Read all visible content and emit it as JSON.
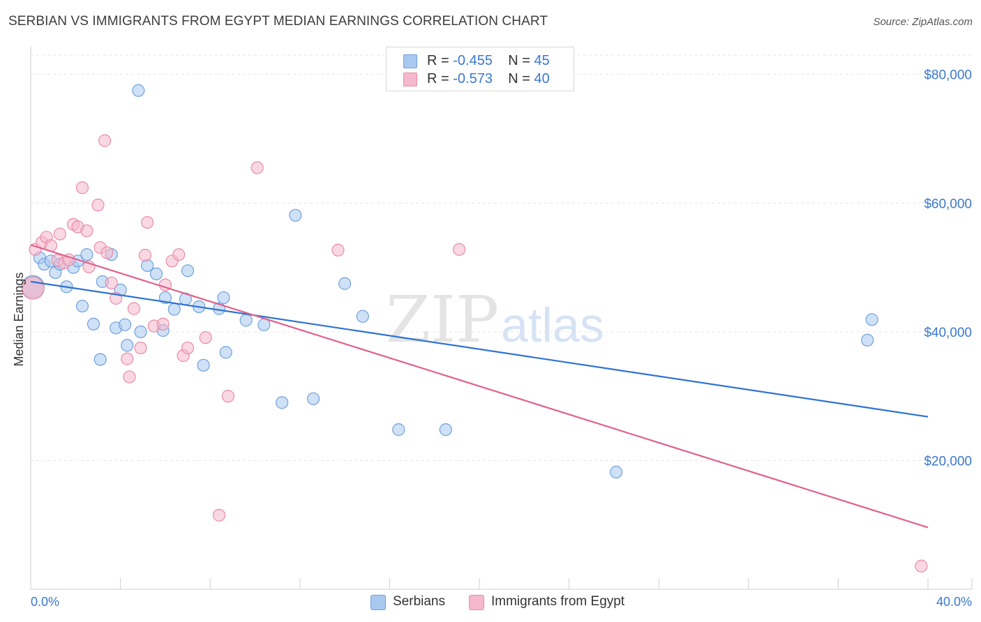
{
  "header": {
    "title": "SERBIAN VS IMMIGRANTS FROM EGYPT MEDIAN EARNINGS CORRELATION CHART",
    "source": "Source: ZipAtlas.com"
  },
  "legend": {
    "rows": [
      {
        "r_label": "R =",
        "r_value": "-0.455",
        "n_label": "N =",
        "n_value": "45",
        "color": "#a8c8f0"
      },
      {
        "r_label": "R =",
        "r_value": "-0.573",
        "n_label": "N =",
        "n_value": "40",
        "color": "#f5b8cc"
      }
    ]
  },
  "bottom_legend": {
    "items": [
      {
        "label": "Serbians",
        "color": "#a8c8f0"
      },
      {
        "label": "Immigrants from Egypt",
        "color": "#f5b8cc"
      }
    ]
  },
  "watermark": {
    "zip": "ZIP",
    "atlas": "atlas"
  },
  "chart_data": {
    "type": "scatter",
    "title": "SERBIAN VS IMMIGRANTS FROM EGYPT MEDIAN EARNINGS CORRELATION CHART",
    "xlabel": "",
    "ylabel": "Median Earnings",
    "xlim": [
      0,
      40
    ],
    "ylim": [
      0,
      83000
    ],
    "x_tick_labels": [
      "0.0%",
      "40.0%"
    ],
    "y_ticks": [
      20000,
      40000,
      60000,
      80000
    ],
    "y_tick_labels": [
      "$20,000",
      "$40,000",
      "$60,000",
      "$80,000"
    ],
    "grid": true,
    "legend_position": "top-center",
    "series": [
      {
        "name": "Serbians",
        "color": "#a8c8f0",
        "stroke": "#6fa0dc",
        "trend_color": "#2e72d2",
        "trend": {
          "x": [
            0,
            40
          ],
          "y": [
            47800,
            26800
          ]
        },
        "points": [
          {
            "x": 0.1,
            "y": 47000
          },
          {
            "x": 0.4,
            "y": 51500
          },
          {
            "x": 0.6,
            "y": 50500
          },
          {
            "x": 0.9,
            "y": 51000
          },
          {
            "x": 1.1,
            "y": 49200
          },
          {
            "x": 1.3,
            "y": 50500
          },
          {
            "x": 1.6,
            "y": 47000
          },
          {
            "x": 1.9,
            "y": 50000
          },
          {
            "x": 2.1,
            "y": 51000
          },
          {
            "x": 2.3,
            "y": 44000
          },
          {
            "x": 2.5,
            "y": 52000
          },
          {
            "x": 2.8,
            "y": 41200
          },
          {
            "x": 3.1,
            "y": 35700
          },
          {
            "x": 3.2,
            "y": 47800
          },
          {
            "x": 3.6,
            "y": 52000
          },
          {
            "x": 3.8,
            "y": 40600
          },
          {
            "x": 4.0,
            "y": 46500
          },
          {
            "x": 4.2,
            "y": 41100
          },
          {
            "x": 4.3,
            "y": 37900
          },
          {
            "x": 4.8,
            "y": 77500
          },
          {
            "x": 4.9,
            "y": 40000
          },
          {
            "x": 5.2,
            "y": 50300
          },
          {
            "x": 5.6,
            "y": 49000
          },
          {
            "x": 5.9,
            "y": 40200
          },
          {
            "x": 6.0,
            "y": 45300
          },
          {
            "x": 6.4,
            "y": 43500
          },
          {
            "x": 6.9,
            "y": 45100
          },
          {
            "x": 7.0,
            "y": 49500
          },
          {
            "x": 7.5,
            "y": 43900
          },
          {
            "x": 7.7,
            "y": 34800
          },
          {
            "x": 8.4,
            "y": 43600
          },
          {
            "x": 8.6,
            "y": 45300
          },
          {
            "x": 8.7,
            "y": 36800
          },
          {
            "x": 9.6,
            "y": 41800
          },
          {
            "x": 10.4,
            "y": 41100
          },
          {
            "x": 11.2,
            "y": 29000
          },
          {
            "x": 11.8,
            "y": 58100
          },
          {
            "x": 12.6,
            "y": 29600
          },
          {
            "x": 14.0,
            "y": 47500
          },
          {
            "x": 14.8,
            "y": 42400
          },
          {
            "x": 16.4,
            "y": 24800
          },
          {
            "x": 18.5,
            "y": 24800
          },
          {
            "x": 26.1,
            "y": 18200
          },
          {
            "x": 37.3,
            "y": 38700
          },
          {
            "x": 37.5,
            "y": 41900
          }
        ]
      },
      {
        "name": "Immigrants from Egypt",
        "color": "#f5b8cc",
        "stroke": "#e88ca8",
        "trend_color": "#e0608c",
        "trend": {
          "x": [
            0,
            40
          ],
          "y": [
            53500,
            9600
          ]
        },
        "points": [
          {
            "x": 0.2,
            "y": 52800
          },
          {
            "x": 0.5,
            "y": 53900
          },
          {
            "x": 0.7,
            "y": 54700
          },
          {
            "x": 0.9,
            "y": 53400
          },
          {
            "x": 1.2,
            "y": 51100
          },
          {
            "x": 1.3,
            "y": 55200
          },
          {
            "x": 1.5,
            "y": 50700
          },
          {
            "x": 1.7,
            "y": 51200
          },
          {
            "x": 1.9,
            "y": 56700
          },
          {
            "x": 2.1,
            "y": 56300
          },
          {
            "x": 2.3,
            "y": 62400
          },
          {
            "x": 2.5,
            "y": 55700
          },
          {
            "x": 2.6,
            "y": 50100
          },
          {
            "x": 3.0,
            "y": 59700
          },
          {
            "x": 3.1,
            "y": 53100
          },
          {
            "x": 3.3,
            "y": 69700
          },
          {
            "x": 3.4,
            "y": 52300
          },
          {
            "x": 3.6,
            "y": 47600
          },
          {
            "x": 3.8,
            "y": 45200
          },
          {
            "x": 4.3,
            "y": 35800
          },
          {
            "x": 4.4,
            "y": 33000
          },
          {
            "x": 4.6,
            "y": 43600
          },
          {
            "x": 4.9,
            "y": 37500
          },
          {
            "x": 5.1,
            "y": 51900
          },
          {
            "x": 5.2,
            "y": 57000
          },
          {
            "x": 5.5,
            "y": 40900
          },
          {
            "x": 5.9,
            "y": 41200
          },
          {
            "x": 6.0,
            "y": 47300
          },
          {
            "x": 6.3,
            "y": 51000
          },
          {
            "x": 6.6,
            "y": 52000
          },
          {
            "x": 6.8,
            "y": 36300
          },
          {
            "x": 7.0,
            "y": 37500
          },
          {
            "x": 7.8,
            "y": 39100
          },
          {
            "x": 8.4,
            "y": 11500
          },
          {
            "x": 8.8,
            "y": 30000
          },
          {
            "x": 10.1,
            "y": 65500
          },
          {
            "x": 13.7,
            "y": 52700
          },
          {
            "x": 19.1,
            "y": 52800
          },
          {
            "x": 39.7,
            "y": 3600
          },
          {
            "x": 0.1,
            "y": 46800
          }
        ]
      }
    ]
  }
}
